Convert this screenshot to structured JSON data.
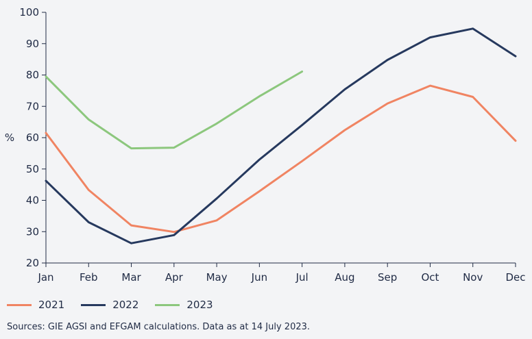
{
  "chart_data": {
    "type": "line",
    "categories": [
      "Jan",
      "Feb",
      "Mar",
      "Apr",
      "May",
      "Jun",
      "Jul",
      "Aug",
      "Sep",
      "Oct",
      "Nov",
      "Dec"
    ],
    "ylabel": "%",
    "ylim": [
      20,
      100
    ],
    "yticks": [
      20,
      30,
      40,
      50,
      60,
      70,
      80,
      90,
      100
    ],
    "grid": false,
    "legend_position": "bottom-left",
    "series": [
      {
        "name": "2021",
        "color": "#f08462",
        "values": [
          61.5,
          43.3,
          32.0,
          29.9,
          33.6,
          42.9,
          52.5,
          62.4,
          70.9,
          76.6,
          73.0,
          59.0
        ]
      },
      {
        "name": "2022",
        "color": "#26395e",
        "values": [
          46.2,
          33.0,
          26.3,
          28.9,
          40.6,
          53.0,
          64.0,
          75.4,
          84.8,
          92.0,
          94.8,
          86.0
        ]
      },
      {
        "name": "2023",
        "color": "#8cc77d",
        "values": [
          79.5,
          65.8,
          56.6,
          56.8,
          64.5,
          73.2,
          81.1,
          null,
          null,
          null,
          null,
          null
        ]
      }
    ]
  },
  "source_note": "Sources: GIE AGSI and EFGAM calculations. Data as at 14 July 2023."
}
